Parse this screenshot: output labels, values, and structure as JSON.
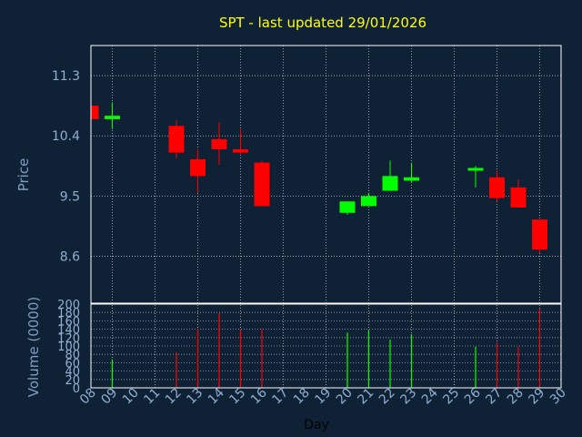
{
  "chart_data": [
    {
      "type": "candlestick",
      "title": "SPT - last updated 29/01/2026",
      "ylabel": "Price",
      "yticks": [
        "11.3",
        "10.4",
        "9.5",
        "8.6"
      ],
      "ytick_values": [
        11.3,
        10.4,
        9.5,
        8.6
      ],
      "ylim": [
        7.9,
        11.75
      ],
      "colors": {
        "up": "#00ff00",
        "down": "#ff0000",
        "background": "#0f2135",
        "grid": "#ffffff",
        "title": "#ffff00"
      },
      "candles": [
        {
          "day": "08",
          "open": 10.85,
          "high": 10.85,
          "low": 10.65,
          "close": 10.65
        },
        {
          "day": "09",
          "open": 10.65,
          "high": 10.9,
          "low": 10.5,
          "close": 10.7
        },
        {
          "day": "12",
          "open": 10.55,
          "high": 10.63,
          "low": 10.07,
          "close": 10.15
        },
        {
          "day": "13",
          "open": 10.05,
          "high": 10.2,
          "low": 9.55,
          "close": 9.8
        },
        {
          "day": "14",
          "open": 10.35,
          "high": 10.6,
          "low": 9.97,
          "close": 10.2
        },
        {
          "day": "15",
          "open": 10.2,
          "high": 10.5,
          "low": 10.13,
          "close": 10.15
        },
        {
          "day": "16",
          "open": 10.0,
          "high": 10.02,
          "low": 9.35,
          "close": 9.35
        },
        {
          "day": "20",
          "open": 9.25,
          "high": 9.42,
          "low": 9.22,
          "close": 9.42
        },
        {
          "day": "21",
          "open": 9.35,
          "high": 9.55,
          "low": 9.35,
          "close": 9.5
        },
        {
          "day": "22",
          "open": 9.58,
          "high": 10.03,
          "low": 9.58,
          "close": 9.8
        },
        {
          "day": "23",
          "open": 9.73,
          "high": 10.0,
          "low": 9.7,
          "close": 9.78
        },
        {
          "day": "26",
          "open": 9.9,
          "high": 9.95,
          "low": 9.63,
          "close": 9.9
        },
        {
          "day": "27",
          "open": 9.78,
          "high": 9.88,
          "low": 9.42,
          "close": 9.47
        },
        {
          "day": "28",
          "open": 9.63,
          "high": 9.75,
          "low": 9.33,
          "close": 9.33
        },
        {
          "day": "29",
          "open": 9.15,
          "high": 9.15,
          "low": 8.65,
          "close": 8.7
        }
      ]
    },
    {
      "type": "bar",
      "ylabel": "Volume (0000)",
      "xlabel": "Day",
      "yticks": [
        "200",
        "180",
        "160",
        "140",
        "120",
        "100",
        "80",
        "60",
        "40",
        "20",
        "0"
      ],
      "ytick_values": [
        200,
        180,
        160,
        140,
        120,
        100,
        80,
        60,
        40,
        20,
        0
      ],
      "ylim": [
        0,
        200
      ],
      "categories": [
        "08",
        "09",
        "10",
        "11",
        "12",
        "13",
        "14",
        "15",
        "16",
        "17",
        "18",
        "19",
        "20",
        "21",
        "22",
        "23",
        "24",
        "25",
        "26",
        "27",
        "28",
        "29",
        "30"
      ],
      "bars": [
        {
          "day": "09",
          "value": 68,
          "color": "up"
        },
        {
          "day": "12",
          "value": 85,
          "color": "down"
        },
        {
          "day": "13",
          "value": 140,
          "color": "down"
        },
        {
          "day": "14",
          "value": 178,
          "color": "down"
        },
        {
          "day": "15",
          "value": 138,
          "color": "down"
        },
        {
          "day": "16",
          "value": 140,
          "color": "down"
        },
        {
          "day": "20",
          "value": 132,
          "color": "up"
        },
        {
          "day": "21",
          "value": 138,
          "color": "up"
        },
        {
          "day": "22",
          "value": 115,
          "color": "up"
        },
        {
          "day": "23",
          "value": 128,
          "color": "up"
        },
        {
          "day": "26",
          "value": 98,
          "color": "up"
        },
        {
          "day": "27",
          "value": 108,
          "color": "down"
        },
        {
          "day": "28",
          "value": 98,
          "color": "down"
        },
        {
          "day": "29",
          "value": 188,
          "color": "down"
        }
      ]
    }
  ]
}
